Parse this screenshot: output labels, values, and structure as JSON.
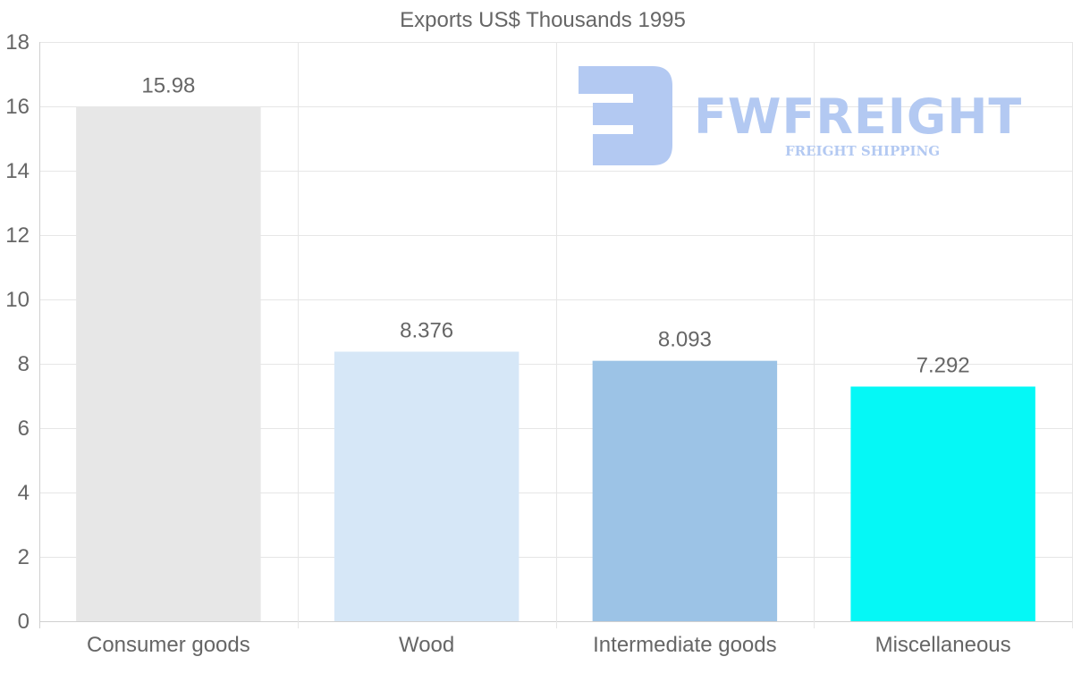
{
  "chart_data": {
    "type": "bar",
    "title": "Exports US$ Thousands 1995",
    "categories": [
      "Consumer goods",
      "Wood",
      "Intermediate goods",
      "Miscellaneous"
    ],
    "values": [
      15.98,
      8.376,
      8.093,
      7.292
    ],
    "value_labels": [
      "15.98",
      "8.376",
      "8.093",
      "7.292"
    ],
    "colors": [
      "#e7e7e7",
      "#d6e7f7",
      "#9cc3e6",
      "#05f8f6"
    ],
    "xlabel": "",
    "ylabel": "",
    "ylim": [
      0,
      18
    ],
    "yticks": [
      0,
      2,
      4,
      6,
      8,
      10,
      12,
      14,
      16,
      18
    ],
    "grid": true,
    "legend": "none"
  },
  "watermark": {
    "name": "FWFREIGHT",
    "tagline": "FREIGHT SHIPPING",
    "color": "#b3c9f2"
  }
}
